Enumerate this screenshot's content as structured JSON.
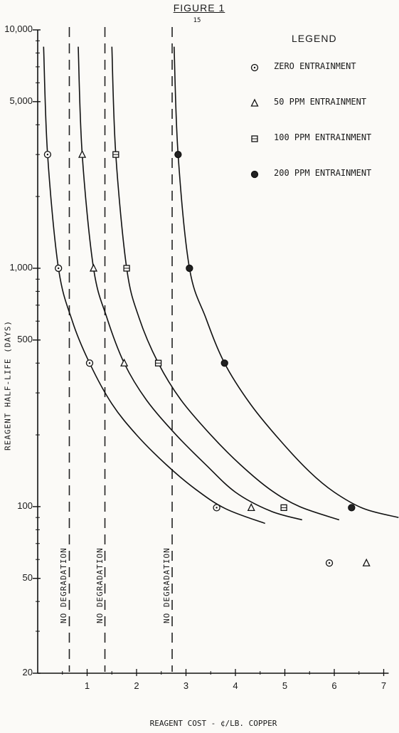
{
  "figure_title": "FIGURE 1",
  "page_number": "15",
  "chart_data": {
    "type": "line",
    "ylabel": "REAGENT HALF-LIFE (DAYS)",
    "xlabel": "REAGENT COST - ¢/LB. COPPER",
    "yscale": "log",
    "xlim": [
      0,
      7
    ],
    "ylim": [
      20,
      10000
    ],
    "x_ticks": [
      "1",
      "2",
      "3",
      "4",
      "5",
      "6",
      "7"
    ],
    "y_ticks": [
      {
        "value": 10000,
        "label": "10,000"
      },
      {
        "value": 5000,
        "label": "5,000"
      },
      {
        "value": 1000,
        "label": "1,000"
      },
      {
        "value": 500,
        "label": "500"
      },
      {
        "value": 100,
        "label": "100"
      },
      {
        "value": 50,
        "label": "50"
      },
      {
        "value": 20,
        "label": "20"
      }
    ],
    "legend_title": "LEGEND",
    "series": [
      {
        "name": "ZERO ENTRAINMENT",
        "marker": "circle-dot",
        "asymptote": 0.64,
        "curve": [
          [
            0.12,
            8500
          ],
          [
            0.2,
            3000
          ],
          [
            0.42,
            1000
          ],
          [
            0.7,
            600
          ],
          [
            1.05,
            400
          ],
          [
            1.5,
            270
          ],
          [
            2.0,
            200
          ],
          [
            2.6,
            150
          ],
          [
            3.2,
            118
          ],
          [
            3.8,
            98
          ],
          [
            4.6,
            85
          ]
        ],
        "points": [
          [
            0.2,
            3000
          ],
          [
            0.42,
            1000
          ],
          [
            1.05,
            400
          ],
          [
            3.62,
            99
          ]
        ]
      },
      {
        "name": "50 PPM ENTRAINMENT",
        "marker": "triangle",
        "asymptote": 1.36,
        "curve": [
          [
            0.82,
            8500
          ],
          [
            0.9,
            3000
          ],
          [
            1.13,
            1000
          ],
          [
            1.4,
            620
          ],
          [
            1.75,
            400
          ],
          [
            2.2,
            280
          ],
          [
            2.8,
            200
          ],
          [
            3.4,
            150
          ],
          [
            4.0,
            115
          ],
          [
            4.7,
            96
          ],
          [
            5.35,
            88
          ]
        ],
        "points": [
          [
            0.9,
            3000
          ],
          [
            1.13,
            1000
          ],
          [
            1.75,
            400
          ],
          [
            4.32,
            99
          ]
        ]
      },
      {
        "name": "100 PPM ENTRAINMENT",
        "marker": "square",
        "asymptote": 2.72,
        "curve": [
          [
            1.5,
            8500
          ],
          [
            1.58,
            3000
          ],
          [
            1.8,
            1000
          ],
          [
            2.05,
            620
          ],
          [
            2.44,
            400
          ],
          [
            2.9,
            280
          ],
          [
            3.5,
            200
          ],
          [
            4.1,
            150
          ],
          [
            4.7,
            118
          ],
          [
            5.3,
            100
          ],
          [
            6.1,
            88
          ]
        ],
        "points": [
          [
            1.58,
            3000
          ],
          [
            1.8,
            1000
          ],
          [
            2.44,
            400
          ],
          [
            4.98,
            99
          ]
        ]
      },
      {
        "name": "200 PPM ENTRAINMENT",
        "marker": "filled-circle",
        "asymptote": null,
        "curve": [
          [
            2.76,
            8500
          ],
          [
            2.84,
            3000
          ],
          [
            3.07,
            1000
          ],
          [
            3.4,
            620
          ],
          [
            3.78,
            400
          ],
          [
            4.3,
            270
          ],
          [
            4.9,
            190
          ],
          [
            5.5,
            140
          ],
          [
            6.0,
            115
          ],
          [
            6.6,
            98
          ],
          [
            7.3,
            90
          ]
        ],
        "points": [
          [
            2.84,
            3000
          ],
          [
            3.07,
            1000
          ],
          [
            3.78,
            400
          ],
          [
            6.35,
            99
          ]
        ]
      }
    ],
    "vertical_lines": [
      {
        "x": 0.64,
        "label": "NO DEGRADATION"
      },
      {
        "x": 1.36,
        "label": "NO DEGRADATION"
      },
      {
        "x": 2.72,
        "label": "NO DEGRADATION"
      }
    ],
    "stray_markers": [
      {
        "marker": "circle-dot",
        "x": 5.9,
        "y": 58
      },
      {
        "marker": "triangle",
        "x": 6.65,
        "y": 58
      }
    ]
  }
}
